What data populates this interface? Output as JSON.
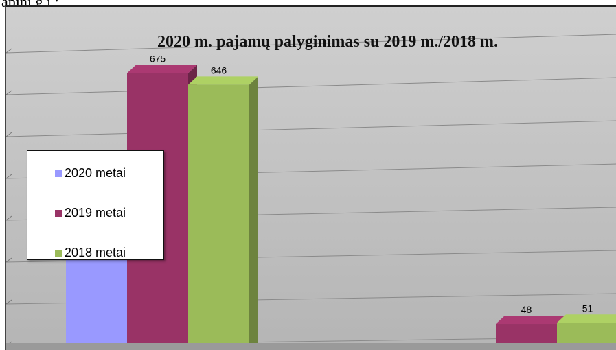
{
  "header_fragment": "ąpinį g į ;",
  "chart_data": {
    "type": "bar",
    "title": "2020 m. pajamų  palyginimas su 2019 m./2018 m.",
    "categories": [
      "",
      ""
    ],
    "series": [
      {
        "name": "2020 metai",
        "color": "#9999ff",
        "values": [
          null,
          null
        ]
      },
      {
        "name": "2019 metai",
        "color": "#993366",
        "values": [
          675,
          48
        ]
      },
      {
        "name": "2018 metai",
        "color": "#9bbb59",
        "values": [
          646,
          51
        ]
      }
    ],
    "data_labels": [
      {
        "series": 1,
        "category": 0,
        "text": "675"
      },
      {
        "series": 2,
        "category": 0,
        "text": "646"
      },
      {
        "series": 1,
        "category": 1,
        "text": "48"
      },
      {
        "series": 2,
        "category": 1,
        "text": "51"
      }
    ],
    "legend_position": "left",
    "grid": true,
    "style": "3d-column"
  }
}
